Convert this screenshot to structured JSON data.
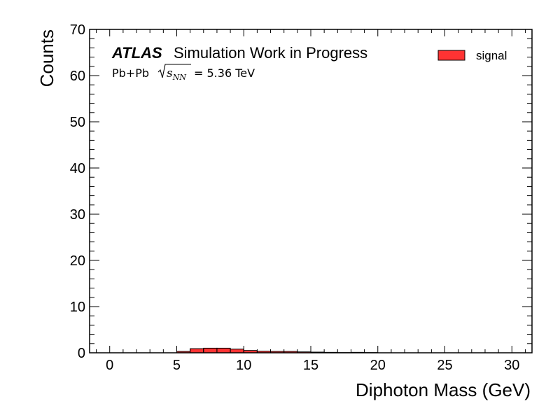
{
  "chart_data": {
    "type": "histogram",
    "xlabel": "Diphoton Mass (GeV)",
    "ylabel": "Counts",
    "xlim": [
      -1.5,
      31.5
    ],
    "ylim": [
      0,
      70
    ],
    "x_ticks": [
      0,
      5,
      10,
      15,
      20,
      25,
      30
    ],
    "y_ticks": [
      0,
      10,
      20,
      30,
      40,
      50,
      60,
      70
    ],
    "bin_edges": [
      5,
      6,
      7,
      8,
      9,
      10,
      11,
      12,
      13,
      14,
      15,
      16,
      17,
      18,
      19,
      20
    ],
    "series": [
      {
        "name": "signal",
        "color": "#ff3333",
        "edge_color": "#000000",
        "values": [
          0.3,
          0.9,
          1.0,
          1.0,
          0.8,
          0.5,
          0.35,
          0.3,
          0.3,
          0.2,
          0.15,
          0.1,
          0.05,
          0.1,
          0.05
        ]
      }
    ],
    "legend": {
      "placement": "top-right",
      "entries": [
        "signal"
      ]
    },
    "annotations": {
      "experiment": "ATLAS",
      "status": "Simulation Work in Progress",
      "system": "Pb+Pb",
      "energy_value": "= 5.36 TeV"
    },
    "grid": false
  }
}
